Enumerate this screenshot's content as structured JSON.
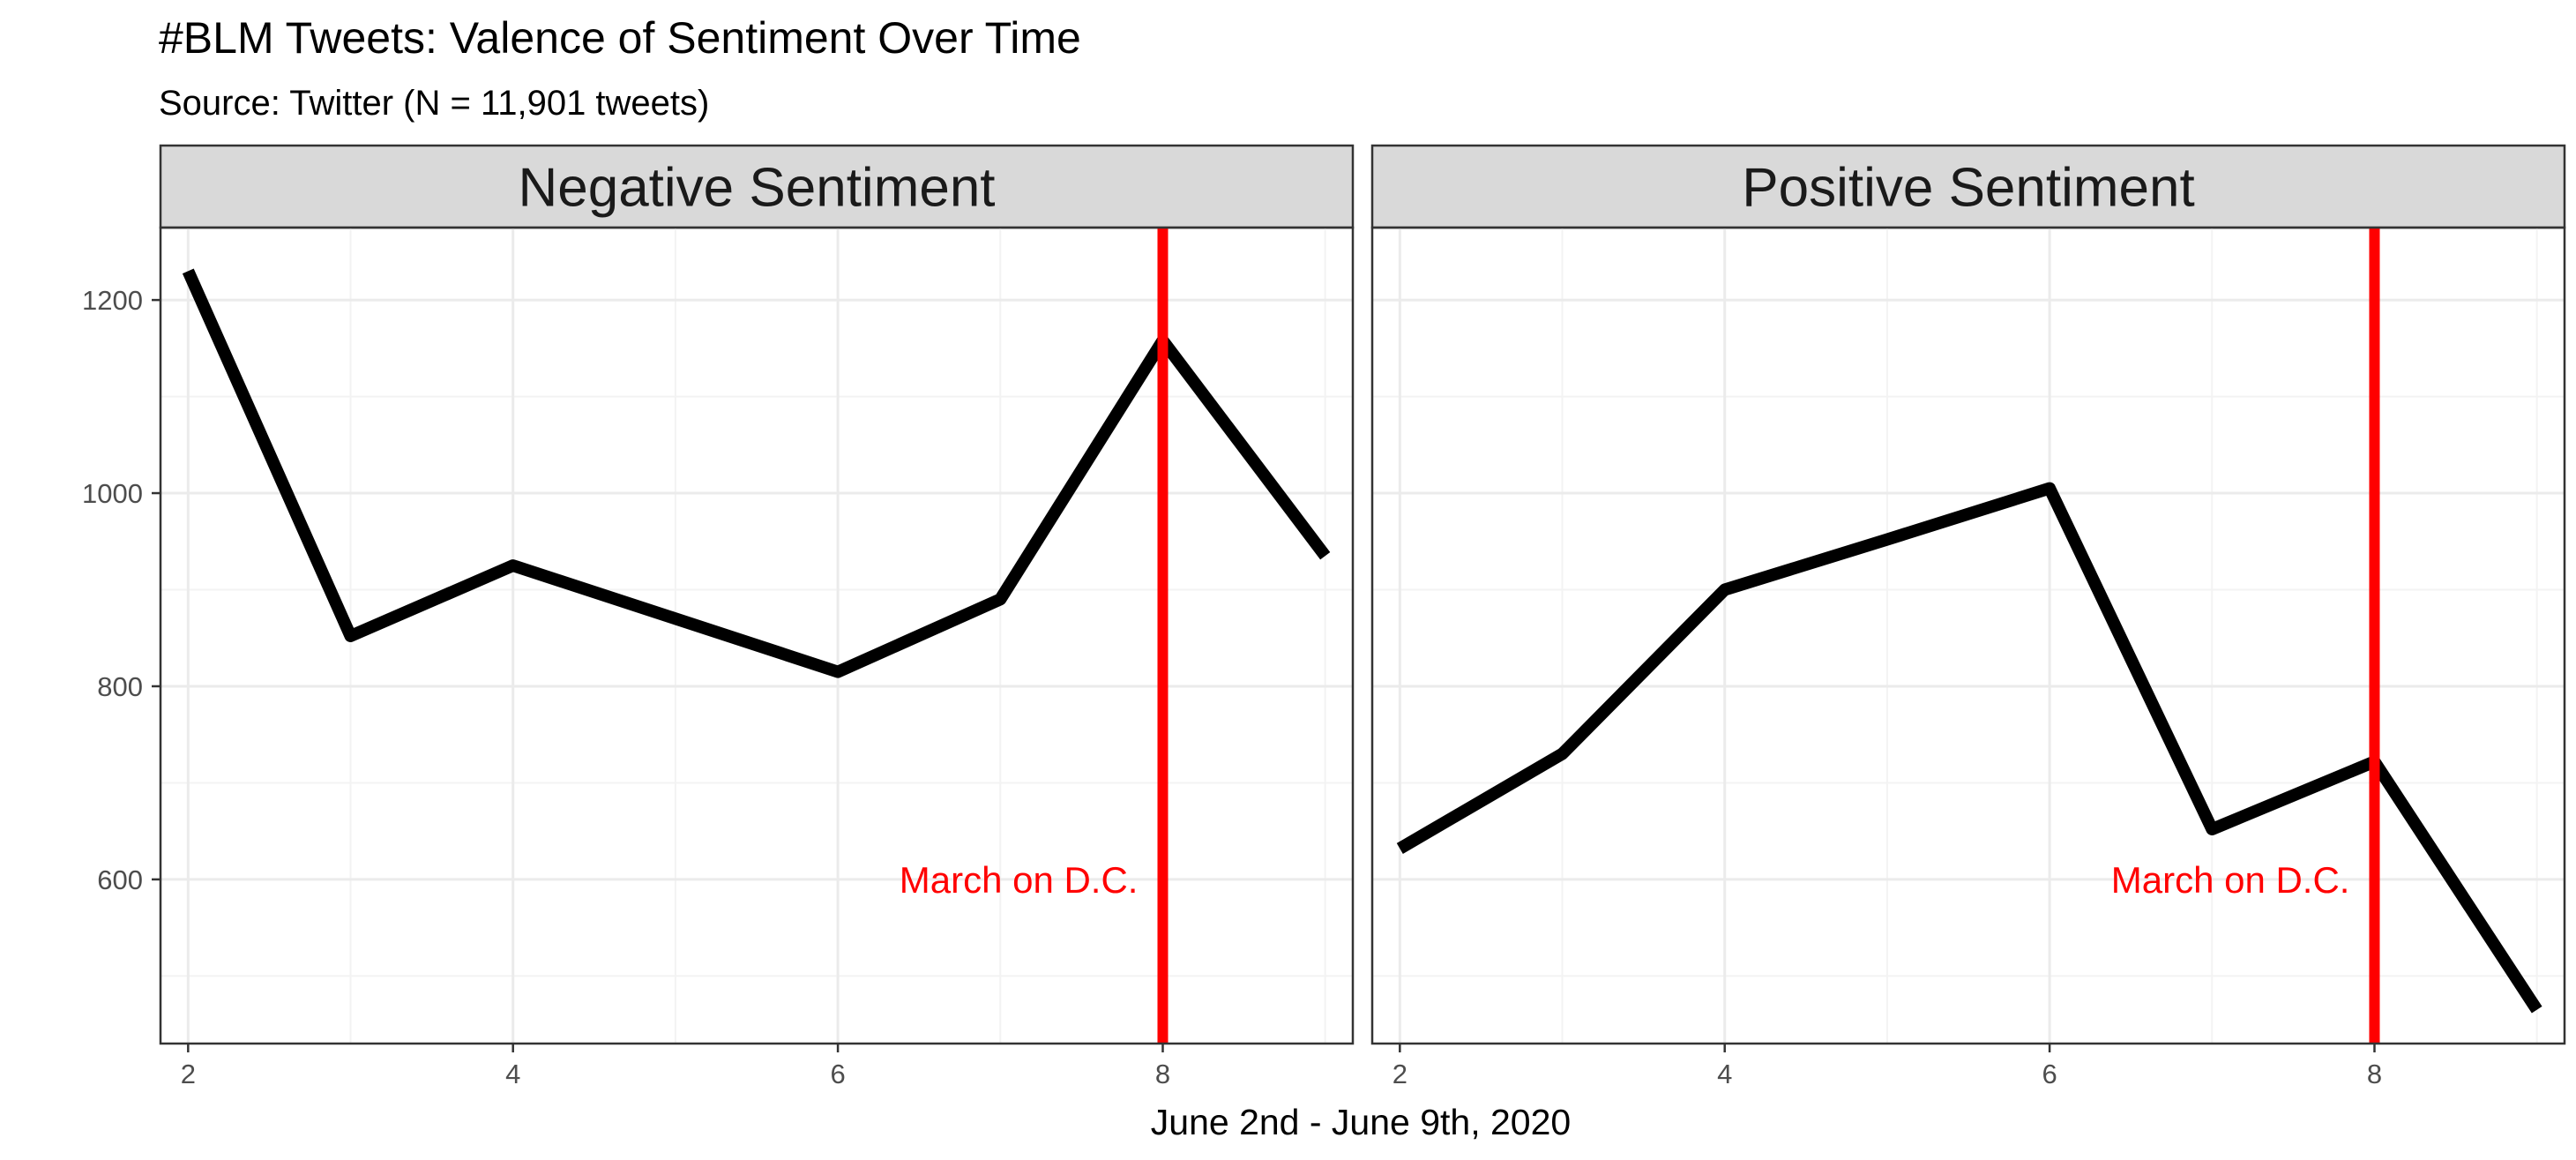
{
  "chart_data": {
    "type": "line",
    "title": "#BLM Tweets: Valence of Sentiment Over Time",
    "subtitle": "Source: Twitter (N = 11,901 tweets)",
    "xlabel": "June 2nd - June 9th, 2020",
    "ylabel": "",
    "xlim": [
      1.83,
      9.17
    ],
    "ylim": [
      430,
      1275
    ],
    "x_ticks": [
      2,
      4,
      6,
      8
    ],
    "y_ticks": [
      600,
      800,
      1000,
      1200
    ],
    "grid": true,
    "colors": {
      "line": "#000000",
      "vline": "#ff0000",
      "strip_fill": "#d9d9d9",
      "grid": "#ebebeb"
    },
    "panels": [
      {
        "name": "Negative Sentiment",
        "x": [
          2,
          3,
          4,
          5,
          6,
          7,
          8,
          9
        ],
        "values": [
          1230,
          852,
          925,
          870,
          815,
          890,
          1158,
          935
        ],
        "vline": {
          "x": 8,
          "label": "March on D.C.",
          "label_y": 600
        }
      },
      {
        "name": "Positive Sentiment",
        "x": [
          2,
          3,
          4,
          5,
          6,
          7,
          8,
          9
        ],
        "values": [
          632,
          730,
          900,
          952,
          1005,
          652,
          722,
          465
        ],
        "vline": {
          "x": 8,
          "label": "March on D.C.",
          "label_y": 600
        }
      }
    ]
  }
}
